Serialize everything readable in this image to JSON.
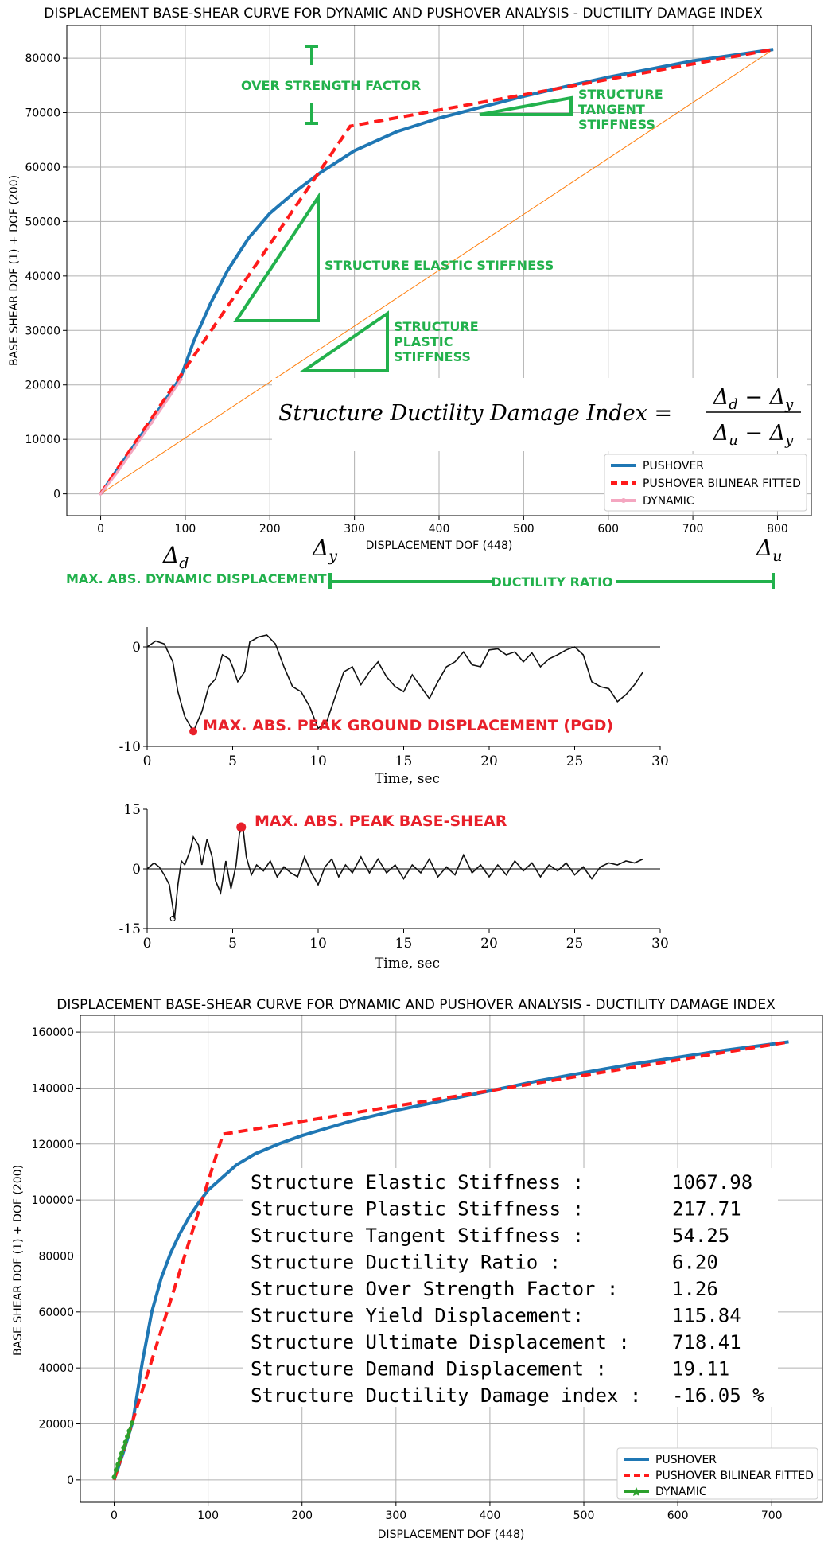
{
  "colors": {
    "pushover": "#1f77b4",
    "bilinear": "#ff1a1a",
    "dynamic_top": "#f4a6c0",
    "dynamic_bottom": "#2ca02c",
    "annotation_green": "#22b14c",
    "annotation_red": "#e8202a",
    "elastic_reference": "#ff7f0e"
  },
  "chart_data": [
    {
      "type": "line",
      "title": "DISPLACEMENT BASE-SHEAR CURVE FOR DYNAMIC AND PUSHOVER ANALYSIS  - DUCTILITY DAMAGE INDEX",
      "xlabel": "DISPLACEMENT DOF (448)",
      "ylabel": "BASE SHEAR DOF (1) + DOF (200)",
      "xlim": [
        -40,
        840
      ],
      "ylim": [
        -4000,
        86000
      ],
      "xticks": [
        "0",
        "100",
        "200",
        "300",
        "400",
        "500",
        "600",
        "700",
        "800"
      ],
      "yticks": [
        "0",
        "10000",
        "20000",
        "30000",
        "40000",
        "50000",
        "60000",
        "70000",
        "80000"
      ],
      "grid": true,
      "legend_position": "bottom-right",
      "series": [
        {
          "name": "PUSHOVER",
          "x": [
            0,
            20,
            40,
            60,
            80,
            95,
            110,
            130,
            150,
            175,
            200,
            230,
            260,
            300,
            350,
            400,
            450,
            500,
            550,
            600,
            650,
            700,
            750,
            795
          ],
          "y": [
            0,
            4500,
            9000,
            13500,
            18000,
            21500,
            28000,
            35000,
            41000,
            47000,
            51500,
            55500,
            59000,
            63000,
            66500,
            69000,
            71000,
            73000,
            74800,
            76500,
            78000,
            79500,
            80600,
            81600
          ]
        },
        {
          "name": "PUSHOVER BILINEAR FITTED",
          "x": [
            0,
            100,
            295,
            795
          ],
          "y": [
            0,
            23000,
            67500,
            81600
          ]
        },
        {
          "name": "DYNAMIC",
          "x": [
            0,
            20,
            40,
            60,
            80,
            95
          ],
          "y": [
            0,
            4000,
            8500,
            13000,
            17500,
            21000
          ]
        }
      ],
      "annotations": {
        "over_strength": "OVER STRENGTH FACTOR",
        "tangent": [
          "STRUCTURE",
          "TANGENT",
          "STIFFNESS"
        ],
        "elastic": "STRUCTURE ELASTIC STIFFNESS",
        "plastic": [
          "STRUCTURE",
          "PLASTIC",
          "STIFFNESS"
        ],
        "formula_lhs": "Structure Ductility Damage Index =",
        "formula_num_a": "Δ",
        "formula_num_a_sub": "d",
        "formula_minus": " − ",
        "formula_num_b": "Δ",
        "formula_num_b_sub": "y",
        "formula_den_a": "Δ",
        "formula_den_a_sub": "u",
        "formula_den_b": "Δ",
        "formula_den_b_sub": "y",
        "delta_d": "Δ",
        "delta_d_sub": "d",
        "delta_y": "Δ",
        "delta_y_sub": "y",
        "delta_u": "Δ",
        "delta_u_sub": "u",
        "max_dyn_disp": "MAX. ABS. DYNAMIC DISPLACEMENT",
        "ductility_ratio": "DUCTILITY RATIO"
      }
    },
    {
      "type": "line",
      "title": "",
      "xlabel": "Time, sec",
      "ylabel": "",
      "xlim": [
        0,
        30
      ],
      "ylim": [
        -10,
        2
      ],
      "xticks": [
        "0",
        "5",
        "10",
        "15",
        "20",
        "25",
        "30"
      ],
      "yticks": [
        "0",
        "-10"
      ],
      "annotation": "MAX. ABS. PEAK GROUND DISPLACEMENT (PGD)",
      "series": [
        {
          "x": [
            0,
            0.5,
            1,
            1.5,
            1.8,
            2.2,
            2.7,
            3.2,
            3.6,
            4,
            4.4,
            4.8,
            5,
            5.3,
            5.7,
            6,
            6.5,
            7,
            7.5,
            8,
            8.5,
            9,
            9.5,
            10,
            10.5,
            11,
            11.5,
            12,
            12.5,
            13,
            13.5,
            14,
            14.5,
            15,
            15.5,
            16,
            16.5,
            17,
            17.5,
            18,
            18.5,
            19,
            19.5,
            20,
            20.5,
            21,
            21.5,
            22,
            22.5,
            23,
            23.5,
            24,
            24.5,
            25,
            25.5,
            26,
            26.5,
            27,
            27.5,
            28,
            28.5,
            29
          ],
          "y": [
            0,
            0.6,
            0.3,
            -1.5,
            -4.5,
            -7,
            -8.5,
            -6.5,
            -4,
            -3.2,
            -0.8,
            -1.2,
            -2,
            -3.5,
            -2.5,
            0.5,
            1,
            1.2,
            0.3,
            -2,
            -4,
            -4.5,
            -6,
            -8.2,
            -7.5,
            -5,
            -2.5,
            -2,
            -3.8,
            -2.5,
            -1.5,
            -3,
            -4,
            -4.5,
            -2.8,
            -4,
            -5.2,
            -3.5,
            -2,
            -1.5,
            -0.5,
            -1.8,
            -2,
            -0.3,
            -0.2,
            -0.8,
            -0.5,
            -1.5,
            -0.6,
            -2,
            -1.2,
            -0.8,
            -0.3,
            0,
            -0.8,
            -3.5,
            -4,
            -4.2,
            -5.5,
            -4.8,
            -3.8,
            -2.5
          ]
        }
      ],
      "peak": {
        "x": 2.7,
        "y": -8.5
      }
    },
    {
      "type": "line",
      "title": "",
      "xlabel": "Time, sec",
      "ylabel": "",
      "xlim": [
        0,
        30
      ],
      "ylim": [
        -15,
        15
      ],
      "xticks": [
        "0",
        "5",
        "10",
        "15",
        "20",
        "25",
        "30"
      ],
      "yticks": [
        "15",
        "0",
        "-15"
      ],
      "annotation": "MAX. ABS. PEAK BASE-SHEAR",
      "series": [
        {
          "x": [
            0,
            0.4,
            0.7,
            1,
            1.3,
            1.6,
            1.8,
            2,
            2.2,
            2.5,
            2.7,
            3,
            3.2,
            3.5,
            3.8,
            4,
            4.3,
            4.6,
            4.9,
            5.2,
            5.4,
            5.6,
            5.8,
            6.1,
            6.4,
            6.8,
            7.2,
            7.6,
            8,
            8.4,
            8.8,
            9.2,
            9.6,
            10,
            10.4,
            10.8,
            11.2,
            11.6,
            12,
            12.5,
            13,
            13.5,
            14,
            14.5,
            15,
            15.5,
            16,
            16.5,
            17,
            17.5,
            18,
            18.5,
            19,
            19.5,
            20,
            20.5,
            21,
            21.5,
            22,
            22.5,
            23,
            23.5,
            24,
            24.5,
            25,
            25.5,
            26,
            26.5,
            27,
            27.5,
            28,
            28.5,
            29
          ],
          "y": [
            0,
            1.5,
            0.5,
            -1.5,
            -4,
            -12.5,
            -4,
            2,
            1,
            4.5,
            8,
            6,
            1,
            7.5,
            3,
            -3,
            -6,
            2,
            -5,
            1,
            9,
            10.5,
            3,
            -1.5,
            1,
            -0.5,
            2,
            -2,
            0.5,
            -1,
            -2,
            3,
            -1,
            -4,
            0.5,
            2.5,
            -2,
            1,
            -1,
            3,
            -1,
            2.5,
            -1,
            1,
            -2.5,
            1,
            -1,
            2.5,
            -2,
            0.5,
            -1.5,
            3.5,
            -1,
            1,
            -2,
            1,
            -1.5,
            2,
            -0.5,
            1.5,
            -2,
            1,
            -0.5,
            1.5,
            -1.5,
            0.5,
            -2.5,
            0.5,
            1.5,
            1,
            2,
            1.5,
            2.5
          ]
        }
      ],
      "peak": {
        "x": 5.5,
        "y": 10.5
      },
      "min_marker": {
        "x": 1.5,
        "y": -12.5
      }
    },
    {
      "type": "line",
      "title": "DISPLACEMENT BASE-SHEAR CURVE FOR DYNAMIC AND PUSHOVER ANALYSIS  - DUCTILITY DAMAGE INDEX",
      "xlabel": "DISPLACEMENT DOF (448)",
      "ylabel": "BASE SHEAR DOF (1) + DOF (200)",
      "xlim": [
        -36,
        754
      ],
      "ylim": [
        -8000,
        166000
      ],
      "xticks": [
        "0",
        "100",
        "200",
        "300",
        "400",
        "500",
        "600",
        "700"
      ],
      "yticks": [
        "0",
        "20000",
        "40000",
        "60000",
        "80000",
        "100000",
        "120000",
        "140000",
        "160000"
      ],
      "grid": true,
      "legend_position": "bottom-right",
      "series": [
        {
          "name": "PUSHOVER",
          "x": [
            0,
            10,
            20,
            30,
            40,
            50,
            60,
            70,
            80,
            90,
            100,
            115,
            130,
            150,
            175,
            200,
            250,
            300,
            350,
            400,
            450,
            500,
            550,
            600,
            650,
            718
          ],
          "y": [
            0,
            10000,
            21000,
            42000,
            60000,
            72000,
            81000,
            88000,
            94000,
            99000,
            103500,
            108000,
            112500,
            116500,
            120000,
            123000,
            128000,
            132000,
            135500,
            139000,
            142500,
            145500,
            148500,
            151000,
            153500,
            156500
          ]
        },
        {
          "name": "PUSHOVER BILINEAR FITTED",
          "x": [
            0,
            115.84,
            718.41
          ],
          "y": [
            0,
            123500,
            156500
          ]
        },
        {
          "name": "DYNAMIC",
          "x": [
            0,
            2,
            4,
            6,
            8,
            10,
            12,
            14,
            16,
            19.11
          ],
          "y": [
            1000,
            3500,
            5500,
            7500,
            9500,
            11500,
            13500,
            15500,
            17500,
            20400
          ]
        }
      ],
      "results": {
        "labels": [
          "Structure Elastic Stiffness :",
          "Structure Plastic Stiffness :",
          "Structure Tangent Stiffness :",
          "Structure Ductility Ratio :",
          "Structure Over Strength Factor :",
          "Structure Yield Displacement:",
          "Structure Ultimate Displacement :",
          "Structure Demand Displacement :",
          "Structure Ductility Damage index :"
        ],
        "values": [
          "1067.98",
          "217.71",
          "54.25",
          "6.20",
          "1.26",
          "115.84",
          "718.41",
          "19.11",
          "-16.05 %"
        ]
      }
    }
  ]
}
